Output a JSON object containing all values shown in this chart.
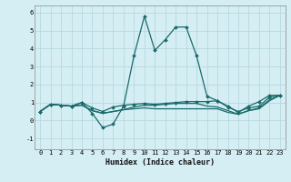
{
  "xlabel": "Humidex (Indice chaleur)",
  "background_color": "#d4eef4",
  "grid_color": "#b8d8e0",
  "line_color": "#1a6b6b",
  "xlim": [
    -0.5,
    23.5
  ],
  "ylim": [
    -1.6,
    6.4
  ],
  "xticks": [
    0,
    1,
    2,
    3,
    4,
    5,
    6,
    7,
    8,
    9,
    10,
    11,
    12,
    13,
    14,
    15,
    16,
    17,
    18,
    19,
    20,
    21,
    22,
    23
  ],
  "yticks": [
    -1,
    0,
    1,
    2,
    3,
    4,
    5,
    6
  ],
  "series": [
    [
      0.5,
      0.9,
      0.85,
      0.8,
      1.0,
      0.4,
      -0.4,
      -0.2,
      0.8,
      3.6,
      5.8,
      3.9,
      4.5,
      5.2,
      5.2,
      3.6,
      1.35,
      1.1,
      0.8,
      0.45,
      0.8,
      1.05,
      1.4,
      1.4
    ],
    [
      0.5,
      0.9,
      0.85,
      0.8,
      1.0,
      0.7,
      0.5,
      0.75,
      0.85,
      0.9,
      0.95,
      0.9,
      0.95,
      1.0,
      1.05,
      1.05,
      1.05,
      1.1,
      0.75,
      0.5,
      0.7,
      0.8,
      1.3,
      1.4
    ],
    [
      0.5,
      0.9,
      0.85,
      0.8,
      0.85,
      0.55,
      0.4,
      0.5,
      0.6,
      0.65,
      0.7,
      0.65,
      0.65,
      0.65,
      0.65,
      0.65,
      0.65,
      0.65,
      0.45,
      0.35,
      0.55,
      0.65,
      1.1,
      1.4
    ],
    [
      0.5,
      0.9,
      0.85,
      0.8,
      0.85,
      0.55,
      0.4,
      0.5,
      0.6,
      0.75,
      0.85,
      0.85,
      0.9,
      0.95,
      0.95,
      0.95,
      0.8,
      0.75,
      0.55,
      0.35,
      0.55,
      0.7,
      1.15,
      1.4
    ]
  ],
  "series_markers": [
    true,
    true,
    false,
    false
  ],
  "xlabel_fontsize": 6.0,
  "tick_fontsize": 5.0,
  "linewidth": 0.9,
  "markersize": 2.0
}
